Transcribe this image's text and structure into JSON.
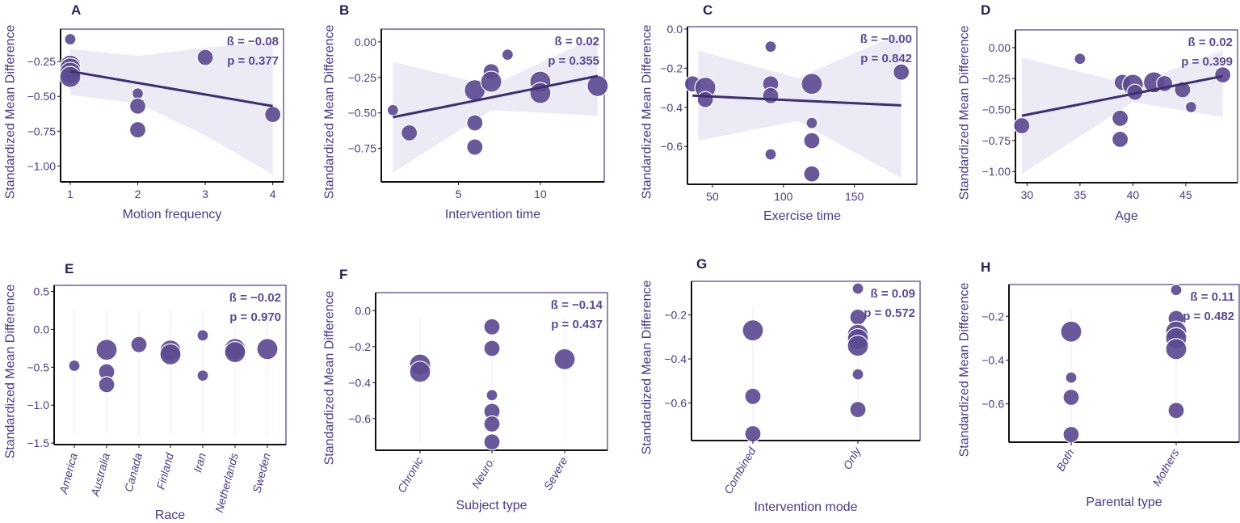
{
  "colors": {
    "point": "#5d4b91",
    "line": "#3e2f6e",
    "band": "#e9e6f3",
    "text": "#4a3b7e"
  },
  "chart_data": [
    {
      "panel": "A",
      "type": "scatter",
      "xlabel": "Motion frequency",
      "ylabel": "Standardized Mean Difference",
      "annotation": [
        "ß = −0.08",
        "p = 0.377"
      ],
      "xlim": [
        0.857,
        4.16
      ],
      "ylim": [
        -1.114,
        -0.017
      ],
      "xticks": [
        1,
        2,
        3,
        4
      ],
      "xtick_labels": [
        "1",
        "2",
        "3",
        "4"
      ],
      "yticks": [
        -0.25,
        -0.5,
        -0.75,
        -1.0
      ],
      "ytick_labels": [
        "-0.25",
        "-0.50",
        "-0.75",
        "-1.00"
      ],
      "points": [
        [
          1,
          -0.09,
          1
        ],
        [
          1,
          -0.28,
          3
        ],
        [
          1,
          -0.3,
          3
        ],
        [
          1,
          -0.33,
          3
        ],
        [
          1,
          -0.36,
          3
        ],
        [
          2,
          -0.48,
          1
        ],
        [
          2,
          -0.57,
          2
        ],
        [
          2,
          -0.74,
          2
        ],
        [
          3,
          -0.22,
          2
        ],
        [
          4,
          -0.63,
          2
        ]
      ],
      "fit": [
        [
          1,
          -0.32
        ],
        [
          4,
          -0.57
        ]
      ],
      "ci": {
        "x": [
          1,
          2,
          3,
          4
        ],
        "lower": [
          -0.49,
          -0.55,
          -0.78,
          -1.06
        ],
        "upper": [
          -0.16,
          -0.21,
          -0.15,
          -0.11
        ]
      }
    },
    {
      "panel": "B",
      "type": "scatter",
      "xlabel": "Intervention time",
      "ylabel": "Standardized Mean Difference",
      "annotation": [
        "ß = 0.02",
        "p = 0.355"
      ],
      "xlim": [
        0.29,
        13.9
      ],
      "ylim": [
        -0.985,
        0.09
      ],
      "xticks": [
        5,
        10
      ],
      "xtick_labels": [
        "5",
        "10"
      ],
      "yticks": [
        0,
        -0.25,
        -0.5,
        -0.75
      ],
      "ytick_labels": [
        "0.00",
        "-0.25",
        "-0.50",
        "-0.75"
      ],
      "points": [
        [
          1,
          -0.48,
          1
        ],
        [
          2,
          -0.64,
          2
        ],
        [
          6,
          -0.34,
          3
        ],
        [
          6,
          -0.57,
          2
        ],
        [
          6,
          -0.74,
          2
        ],
        [
          7,
          -0.21,
          2
        ],
        [
          7,
          -0.28,
          3
        ],
        [
          8,
          -0.09,
          1
        ],
        [
          10,
          -0.28,
          3
        ],
        [
          10,
          -0.36,
          3
        ],
        [
          13.5,
          -0.31,
          3
        ]
      ],
      "fit": [
        [
          1,
          -0.53
        ],
        [
          13.5,
          -0.24
        ]
      ],
      "ci": {
        "x": [
          1,
          7,
          13.5
        ],
        "lower": [
          -0.92,
          -0.48,
          -0.52
        ],
        "upper": [
          -0.14,
          -0.31,
          0.04
        ]
      }
    },
    {
      "panel": "C",
      "type": "scatter",
      "xlabel": "Exercise time",
      "ylabel": "Standardized Mean Difference",
      "annotation": [
        "ß = −0.00",
        "p = 0.842"
      ],
      "xlim": [
        32.4,
        194
      ],
      "ylim": [
        -0.793,
        0.012
      ],
      "xticks": [
        50,
        100,
        150
      ],
      "xtick_labels": [
        "50",
        "100",
        "150"
      ],
      "yticks": [
        0,
        -0.2,
        -0.4,
        -0.6
      ],
      "ytick_labels": [
        "0.0",
        "-0.2",
        "-0.4",
        "-0.6"
      ],
      "points": [
        [
          36,
          -0.28,
          2
        ],
        [
          45,
          -0.3,
          3
        ],
        [
          45,
          -0.36,
          2
        ],
        [
          91,
          -0.09,
          1
        ],
        [
          91,
          -0.28,
          2
        ],
        [
          91,
          -0.34,
          2
        ],
        [
          91,
          -0.64,
          1
        ],
        [
          120,
          -0.28,
          3
        ],
        [
          120,
          -0.48,
          1
        ],
        [
          120,
          -0.57,
          2
        ],
        [
          120,
          -0.74,
          2
        ],
        [
          183,
          -0.22,
          2
        ]
      ],
      "fit": [
        [
          36,
          -0.34
        ],
        [
          183,
          -0.39
        ]
      ],
      "ci": {
        "x": [
          40,
          110,
          183
        ],
        "lower": [
          -0.57,
          -0.47,
          -0.76
        ],
        "upper": [
          -0.11,
          -0.25,
          -0.02
        ]
      }
    },
    {
      "panel": "D",
      "type": "scatter",
      "xlabel": "Age",
      "ylabel": "Standardized Mean Difference",
      "annotation": [
        "ß = 0.02",
        "p = 0.399"
      ],
      "xlim": [
        28.9,
        49.9
      ],
      "ylim": [
        -1.09,
        0.143
      ],
      "xticks": [
        30,
        35,
        40,
        45
      ],
      "xtick_labels": [
        "30",
        "35",
        "40",
        "45"
      ],
      "yticks": [
        0,
        -0.25,
        -0.5,
        -0.75,
        -1.0
      ],
      "ytick_labels": [
        "0.00",
        "-0.25",
        "-0.50",
        "-0.75",
        "-1.00"
      ],
      "points": [
        [
          29.5,
          -0.63,
          2
        ],
        [
          35,
          -0.09,
          1
        ],
        [
          38.8,
          -0.57,
          2
        ],
        [
          38.8,
          -0.74,
          2
        ],
        [
          39,
          -0.28,
          2
        ],
        [
          40,
          -0.3,
          3
        ],
        [
          40.2,
          -0.36,
          2
        ],
        [
          42,
          -0.28,
          3
        ],
        [
          43,
          -0.29,
          2
        ],
        [
          44.7,
          -0.34,
          2
        ],
        [
          45.5,
          -0.48,
          1
        ],
        [
          48.5,
          -0.22,
          2
        ]
      ],
      "fit": [
        [
          29.5,
          -0.55
        ],
        [
          48.5,
          -0.23
        ]
      ],
      "ci": {
        "x": [
          29.5,
          40,
          48.5
        ],
        "lower": [
          -1.02,
          -0.44,
          -0.56
        ],
        "upper": [
          -0.08,
          -0.3,
          -0.02
        ]
      }
    },
    {
      "panel": "E",
      "type": "scatter",
      "xlabel": "Race",
      "ylabel": "Standardized Mean Difference",
      "annotation": [
        "ß = −0.02",
        "p = 0.970"
      ],
      "ylim": [
        -1.52,
        0.58
      ],
      "categories": [
        "America",
        "Australia",
        "Canada",
        "Finland",
        "Iran",
        "Netherlands",
        "Sweden"
      ],
      "yticks": [
        0.5,
        0,
        -0.5,
        -1.0,
        -1.5
      ],
      "ytick_labels": [
        "0.5",
        "0.0",
        "-0.5",
        "-1.0",
        "-1.5"
      ],
      "points": [
        [
          0,
          -0.48,
          1
        ],
        [
          1,
          -0.27,
          3
        ],
        [
          1,
          -0.56,
          2
        ],
        [
          1,
          -0.73,
          2
        ],
        [
          2,
          -0.2,
          2
        ],
        [
          3,
          -0.28,
          3
        ],
        [
          3,
          -0.33,
          3
        ],
        [
          4,
          -0.08,
          1
        ],
        [
          4,
          -0.61,
          1
        ],
        [
          5,
          -0.26,
          3
        ],
        [
          5,
          -0.3,
          3
        ],
        [
          6,
          -0.26,
          3
        ]
      ]
    },
    {
      "panel": "F",
      "type": "scatter",
      "xlabel": "Subject type",
      "ylabel": "Standardized Mean Difference",
      "annotation": [
        "ß = −0.14",
        "p = 0.437"
      ],
      "ylim": [
        -0.776,
        0.1
      ],
      "categories": [
        "Chronic",
        "Neuro.",
        "Severe"
      ],
      "yticks": [
        0,
        -0.2,
        -0.4,
        -0.6
      ],
      "ytick_labels": [
        "0.0",
        "-0.2",
        "-0.4",
        "-0.6"
      ],
      "points": [
        [
          0,
          -0.3,
          3
        ],
        [
          0,
          -0.34,
          3
        ],
        [
          1,
          -0.09,
          2
        ],
        [
          1,
          -0.21,
          2
        ],
        [
          1,
          -0.47,
          1
        ],
        [
          1,
          -0.56,
          2
        ],
        [
          1,
          -0.63,
          2
        ],
        [
          1,
          -0.73,
          2
        ],
        [
          2,
          -0.27,
          3
        ]
      ]
    },
    {
      "panel": "G",
      "type": "scatter",
      "xlabel": "Intervention mode",
      "ylabel": "Standardized Mean Difference",
      "annotation": [
        "ß = 0.09",
        "p = 0.572"
      ],
      "ylim": [
        -0.771,
        -0.047
      ],
      "categories": [
        "Combined",
        "Only"
      ],
      "yticks": [
        -0.2,
        -0.4,
        -0.6
      ],
      "ytick_labels": [
        "-0.2",
        "-0.4",
        "-0.6"
      ],
      "points": [
        [
          0,
          -0.27,
          3
        ],
        [
          0,
          -0.57,
          2
        ],
        [
          0,
          -0.74,
          2
        ],
        [
          1,
          -0.08,
          1
        ],
        [
          1,
          -0.21,
          2
        ],
        [
          1,
          -0.29,
          3
        ],
        [
          1,
          -0.31,
          3
        ],
        [
          1,
          -0.34,
          3
        ],
        [
          1,
          -0.47,
          1
        ],
        [
          1,
          -0.63,
          2
        ]
      ]
    },
    {
      "panel": "H",
      "type": "scatter",
      "xlabel": "Parental type",
      "ylabel": "Standardized Mean Difference",
      "annotation": [
        "ß = 0.11",
        "p = 0.482"
      ],
      "ylim": [
        -0.775,
        -0.055
      ],
      "categories": [
        "Both",
        "Mothers"
      ],
      "yticks": [
        -0.2,
        -0.4,
        -0.6
      ],
      "ytick_labels": [
        "-0.2",
        "-0.4",
        "-0.6"
      ],
      "points": [
        [
          0,
          -0.27,
          3
        ],
        [
          0,
          -0.48,
          1
        ],
        [
          0,
          -0.57,
          2
        ],
        [
          0,
          -0.74,
          2
        ],
        [
          1,
          -0.08,
          1
        ],
        [
          1,
          -0.21,
          2
        ],
        [
          1,
          -0.27,
          3
        ],
        [
          1,
          -0.3,
          3
        ],
        [
          1,
          -0.35,
          3
        ],
        [
          1,
          -0.63,
          2
        ]
      ]
    }
  ]
}
